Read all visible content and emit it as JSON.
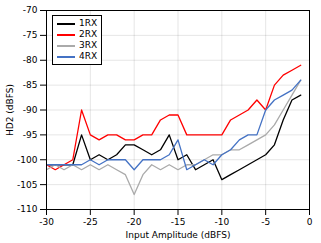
{
  "chart_data": {
    "type": "line",
    "xlabel": "Input Amplitude (dBFS)",
    "ylabel": "HD2 (dBFS)",
    "xlim": [
      -30,
      0
    ],
    "ylim": [
      -110,
      -70
    ],
    "xticks": [
      -30,
      -25,
      -20,
      -15,
      -10,
      -5,
      0
    ],
    "yticks": [
      -110,
      -105,
      -100,
      -95,
      -90,
      -85,
      -80,
      -75,
      -70
    ],
    "grid": true,
    "legend": "upper left",
    "x": [
      -30,
      -29,
      -28,
      -27,
      -26,
      -25,
      -24,
      -23,
      -22,
      -21,
      -20,
      -19,
      -18,
      -17,
      -16,
      -15,
      -14,
      -13,
      -12,
      -11,
      -10,
      -9,
      -8,
      -7,
      -6,
      -5,
      -4,
      -3,
      -2,
      -1
    ],
    "series": [
      {
        "name": "1RX",
        "color": "#000000",
        "values": [
          -101,
          -101,
          -101,
          -101,
          -95,
          -100,
          -99,
          -100,
          -99,
          -97,
          -97,
          -98,
          -99,
          -98,
          -95,
          -100,
          -99,
          -102,
          -101,
          -100,
          -104,
          -103,
          -102,
          -101,
          -100,
          -99,
          -97,
          -92,
          -88,
          -87
        ]
      },
      {
        "name": "2RX",
        "color": "#ff0000",
        "values": [
          -101,
          -102,
          -101,
          -100,
          -90,
          -95,
          -96,
          -95,
          -95,
          -96,
          -96,
          -95,
          -95,
          -92,
          -91,
          -91,
          -95,
          -95,
          -95,
          -95,
          -95,
          -92,
          -91,
          -90,
          -88,
          -90,
          -85,
          -83,
          -82,
          -81
        ]
      },
      {
        "name": "3RX",
        "color": "#aaaaaa",
        "values": [
          -102,
          -101,
          -102,
          -101,
          -102,
          -101,
          -102,
          -101,
          -102,
          -103,
          -107,
          -103,
          -101,
          -102,
          -101,
          -102,
          -101,
          -101,
          -100,
          -99,
          -99,
          -98,
          -98,
          -97,
          -96,
          -95,
          -93,
          -90,
          -87,
          -84
        ]
      },
      {
        "name": "4RX",
        "color": "#4472c4",
        "values": [
          -101,
          -101,
          -101,
          -101,
          -101,
          -100,
          -101,
          -100,
          -100,
          -100,
          -102,
          -100,
          -100,
          -100,
          -99,
          -96,
          -102,
          -101,
          -100,
          -101,
          -99,
          -98,
          -96,
          -95,
          -95,
          -90,
          -88,
          -87,
          -86,
          -84
        ]
      }
    ]
  }
}
